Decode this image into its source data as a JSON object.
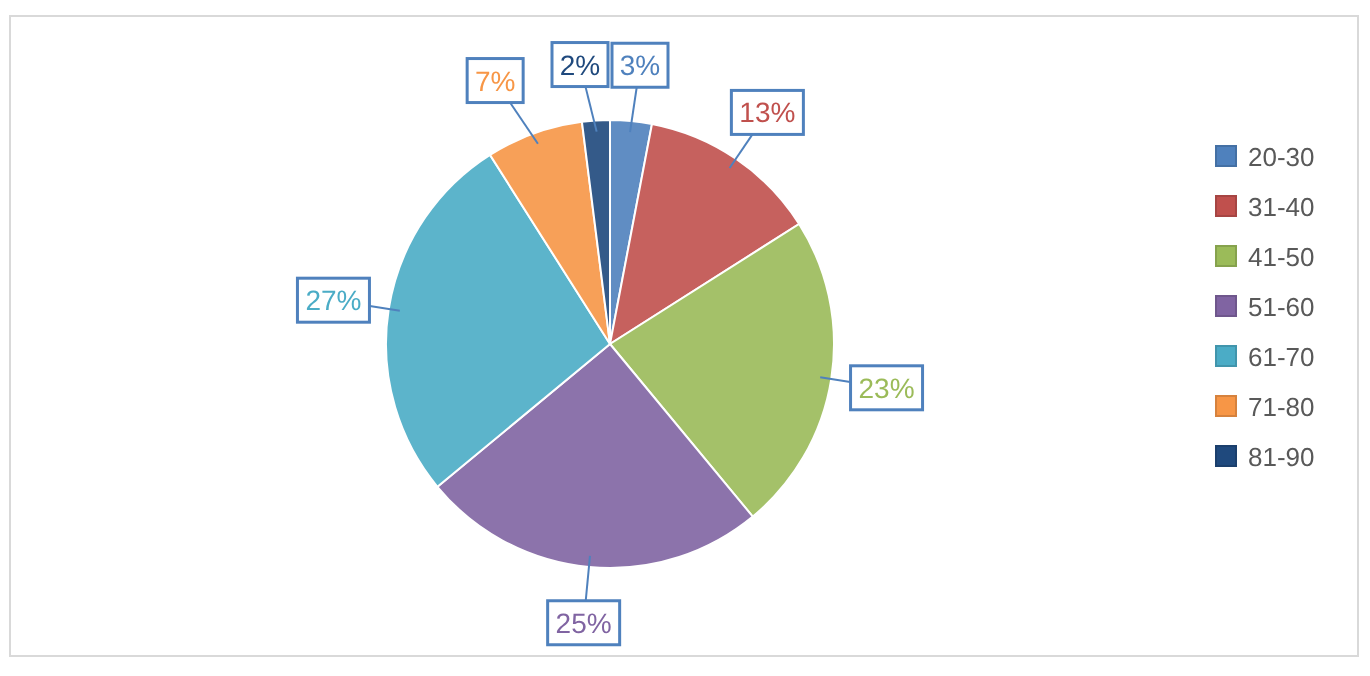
{
  "chart_data": {
    "type": "pie",
    "categories": [
      "20-30",
      "31-40",
      "41-50",
      "51-60",
      "61-70",
      "71-80",
      "81-90"
    ],
    "values": [
      3,
      13,
      23,
      25,
      27,
      7,
      2
    ],
    "colors": [
      "#4f81bd",
      "#c0504d",
      "#9bbb59",
      "#8064a2",
      "#4bacc6",
      "#f79646",
      "#1f497d"
    ],
    "value_labels": [
      "3%",
      "13%",
      "23%",
      "25%",
      "27%",
      "7%",
      "2%"
    ],
    "legend": "right"
  }
}
